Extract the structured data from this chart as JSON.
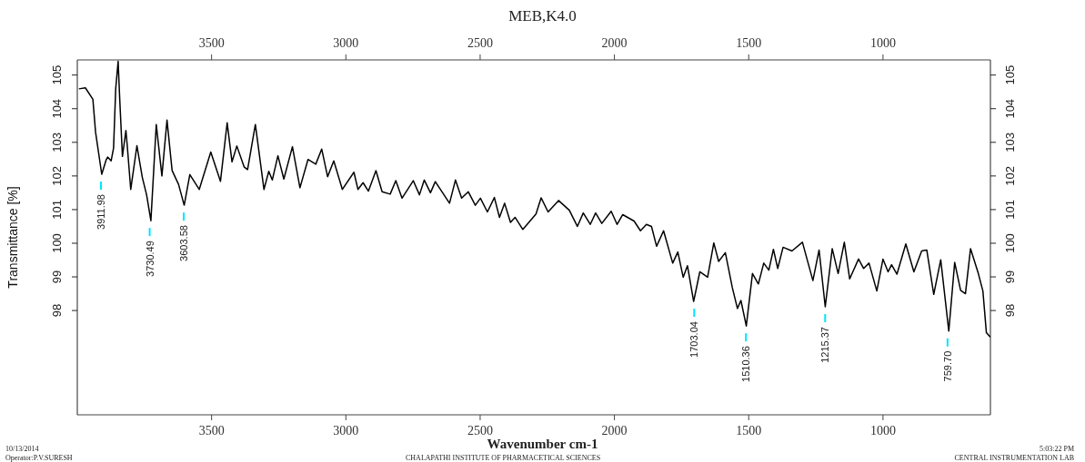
{
  "chart_data": {
    "type": "line",
    "title": "MEB,K4.0",
    "xlabel": "Wavenumber cm-1",
    "ylabel": "Transmittance [%]",
    "x": [
      3994,
      3970,
      3942,
      3932,
      3909,
      3893,
      3887,
      3874,
      3865,
      3857,
      3848,
      3842,
      3832,
      3819,
      3814,
      3801,
      3778,
      3758,
      3742,
      3726,
      3706,
      3685,
      3666,
      3647,
      3623,
      3602,
      3581,
      3546,
      3503,
      3467,
      3442,
      3424,
      3406,
      3379,
      3366,
      3337,
      3305,
      3287,
      3274,
      3253,
      3231,
      3199,
      3171,
      3141,
      3112,
      3090,
      3068,
      3045,
      3013,
      2970,
      2955,
      2936,
      2916,
      2888,
      2865,
      2835,
      2814,
      2791,
      2749,
      2726,
      2708,
      2685,
      2667,
      2614,
      2592,
      2569,
      2544,
      2518,
      2499,
      2473,
      2447,
      2428,
      2409,
      2387,
      2370,
      2341,
      2292,
      2273,
      2247,
      2208,
      2168,
      2138,
      2116,
      2090,
      2070,
      2047,
      2012,
      1990,
      1969,
      1927,
      1903,
      1881,
      1862,
      1843,
      1817,
      1783,
      1764,
      1744,
      1728,
      1705,
      1682,
      1653,
      1630,
      1612,
      1587,
      1561,
      1542,
      1529,
      1509,
      1486,
      1464,
      1444,
      1425,
      1408,
      1392,
      1372,
      1339,
      1300,
      1261,
      1238,
      1215,
      1189,
      1167,
      1144,
      1124,
      1091,
      1072,
      1052,
      1023,
      1000,
      981,
      968,
      948,
      915,
      885,
      856,
      837,
      811,
      785,
      755,
      733,
      711,
      693,
      674,
      645,
      628,
      615,
      600
    ],
    "series": [
      {
        "color": "#000000",
        "values": [
          104.59,
          104.62,
          104.28,
          103.3,
          102.05,
          102.47,
          102.56,
          102.45,
          102.83,
          104.59,
          105.41,
          104.28,
          102.58,
          103.35,
          102.9,
          101.6,
          102.9,
          101.96,
          101.44,
          100.67,
          103.53,
          102.0,
          103.66,
          102.16,
          101.75,
          101.13,
          102.04,
          101.6,
          102.71,
          101.84,
          103.58,
          102.42,
          102.89,
          102.27,
          102.19,
          103.53,
          101.6,
          102.14,
          101.88,
          102.6,
          101.91,
          102.87,
          101.65,
          102.49,
          102.35,
          102.8,
          101.98,
          102.45,
          101.6,
          102.11,
          101.6,
          101.8,
          101.55,
          102.16,
          101.53,
          101.46,
          101.86,
          101.34,
          101.86,
          101.44,
          101.88,
          101.5,
          101.83,
          101.19,
          101.88,
          101.34,
          101.53,
          101.13,
          101.34,
          100.93,
          101.36,
          100.77,
          101.19,
          100.62,
          100.77,
          100.41,
          100.87,
          101.35,
          100.93,
          101.27,
          100.98,
          100.5,
          100.9,
          100.56,
          100.9,
          100.59,
          100.95,
          100.56,
          100.85,
          100.66,
          100.37,
          100.56,
          100.5,
          99.91,
          100.37,
          99.41,
          99.74,
          98.99,
          99.33,
          98.27,
          99.15,
          98.99,
          100.01,
          99.46,
          99.72,
          98.68,
          98.06,
          98.3,
          97.54,
          99.1,
          98.79,
          99.41,
          99.2,
          99.82,
          99.25,
          99.88,
          99.77,
          100.03,
          98.89,
          99.8,
          98.11,
          99.84,
          99.1,
          100.03,
          98.94,
          99.53,
          99.25,
          99.41,
          98.58,
          99.53,
          99.15,
          99.36,
          99.08,
          99.98,
          99.15,
          99.77,
          99.8,
          98.48,
          99.51,
          97.39,
          99.43,
          98.6,
          98.5,
          99.84,
          99.1,
          98.58,
          97.34,
          97.21
        ]
      }
    ],
    "xlim": [
      4000,
      600
    ],
    "xticks": [
      3500,
      3000,
      2500,
      2000,
      1500,
      1000
    ],
    "x2lim": [
      4000,
      600
    ],
    "x2ticks": [
      3500,
      3000,
      2500,
      2000,
      1500,
      1000
    ],
    "ylim": [
      94.9,
      105.45
    ],
    "yticks": [
      98,
      99,
      100,
      101,
      102,
      103,
      104,
      105
    ],
    "y2lim": [
      94.9,
      105.45
    ],
    "y2ticks": [
      98,
      99,
      100,
      101,
      102,
      103,
      104,
      105
    ],
    "legend": false,
    "marker": "none",
    "line_style": "solid",
    "annotations": [
      {
        "text": "3911.98",
        "x": 3911.98,
        "y": 102.05
      },
      {
        "text": "3730.49",
        "x": 3730.49,
        "y": 100.67
      },
      {
        "text": "3603.58",
        "x": 3603.58,
        "y": 101.13
      },
      {
        "text": "1703.04",
        "x": 1703.04,
        "y": 98.27
      },
      {
        "text": "1510.36",
        "x": 1510.36,
        "y": 97.54
      },
      {
        "text": "1215.37",
        "x": 1215.37,
        "y": 98.11
      },
      {
        "text": "759.70",
        "x": 759.7,
        "y": 97.39
      },
      "10/13/2014",
      "Operator:P.V.SURESH",
      "CHALAPATHI INSTITUTE OF PHARMACETICAL SCIENCES",
      "5:03:22 PM",
      "CENTRAL INSTRUMENTATION LAB"
    ]
  }
}
